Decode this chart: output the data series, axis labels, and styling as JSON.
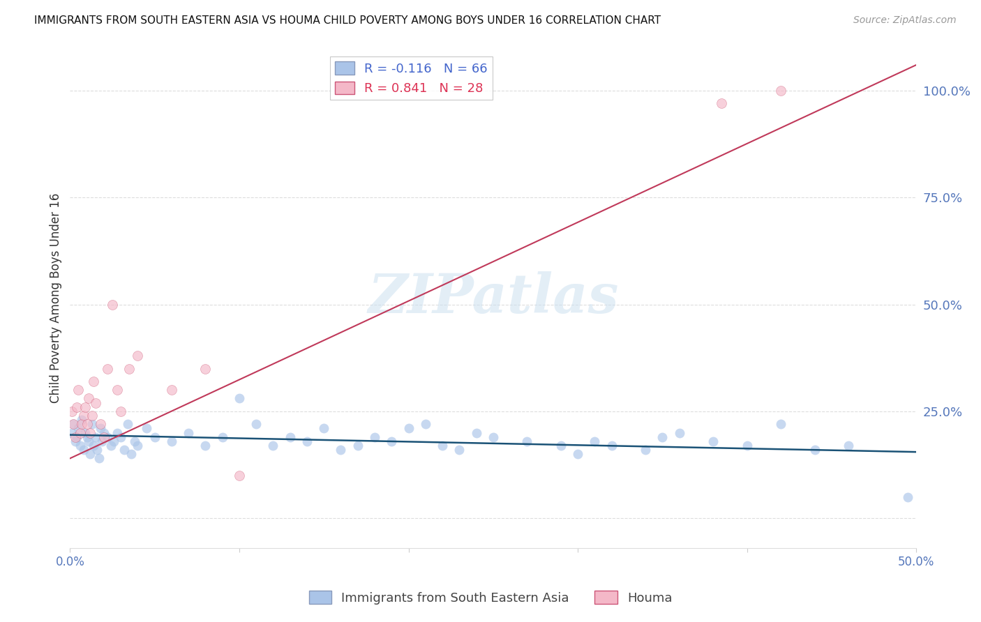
{
  "title": "IMMIGRANTS FROM SOUTH EASTERN ASIA VS HOUMA CHILD POVERTY AMONG BOYS UNDER 16 CORRELATION CHART",
  "source": "Source: ZipAtlas.com",
  "ylabel": "Child Poverty Among Boys Under 16",
  "xlim": [
    0.0,
    0.5
  ],
  "ylim": [
    -0.07,
    1.1
  ],
  "blue_color": "#aac4e8",
  "blue_line_color": "#1a5276",
  "pink_color": "#f4b8c8",
  "pink_line_color": "#c0395a",
  "blue_R": -0.116,
  "blue_N": 66,
  "pink_R": 0.841,
  "pink_N": 28,
  "legend_label_blue": "Immigrants from South Eastern Asia",
  "legend_label_pink": "Houma",
  "blue_x": [
    0.001,
    0.002,
    0.003,
    0.004,
    0.005,
    0.006,
    0.007,
    0.008,
    0.009,
    0.01,
    0.011,
    0.012,
    0.013,
    0.014,
    0.015,
    0.016,
    0.017,
    0.018,
    0.019,
    0.02,
    0.022,
    0.024,
    0.026,
    0.028,
    0.03,
    0.032,
    0.034,
    0.036,
    0.038,
    0.04,
    0.045,
    0.05,
    0.06,
    0.07,
    0.08,
    0.09,
    0.1,
    0.11,
    0.12,
    0.13,
    0.14,
    0.15,
    0.16,
    0.17,
    0.18,
    0.19,
    0.2,
    0.21,
    0.22,
    0.23,
    0.24,
    0.25,
    0.27,
    0.29,
    0.3,
    0.31,
    0.32,
    0.34,
    0.35,
    0.36,
    0.38,
    0.4,
    0.42,
    0.44,
    0.46,
    0.495
  ],
  "blue_y": [
    0.2,
    0.22,
    0.18,
    0.19,
    0.21,
    0.17,
    0.23,
    0.16,
    0.2,
    0.19,
    0.18,
    0.15,
    0.22,
    0.17,
    0.19,
    0.16,
    0.14,
    0.21,
    0.18,
    0.2,
    0.19,
    0.17,
    0.18,
    0.2,
    0.19,
    0.16,
    0.22,
    0.15,
    0.18,
    0.17,
    0.21,
    0.19,
    0.18,
    0.2,
    0.17,
    0.19,
    0.28,
    0.22,
    0.17,
    0.19,
    0.18,
    0.21,
    0.16,
    0.17,
    0.19,
    0.18,
    0.21,
    0.22,
    0.17,
    0.16,
    0.2,
    0.19,
    0.18,
    0.17,
    0.15,
    0.18,
    0.17,
    0.16,
    0.19,
    0.2,
    0.18,
    0.17,
    0.22,
    0.16,
    0.17,
    0.05
  ],
  "pink_x": [
    0.001,
    0.002,
    0.003,
    0.004,
    0.005,
    0.006,
    0.007,
    0.008,
    0.009,
    0.01,
    0.011,
    0.012,
    0.013,
    0.014,
    0.015,
    0.018,
    0.02,
    0.022,
    0.025,
    0.028,
    0.03,
    0.035,
    0.04,
    0.06,
    0.08,
    0.1,
    0.385,
    0.42
  ],
  "pink_y": [
    0.25,
    0.22,
    0.19,
    0.26,
    0.3,
    0.2,
    0.22,
    0.24,
    0.26,
    0.22,
    0.28,
    0.2,
    0.24,
    0.32,
    0.27,
    0.22,
    0.19,
    0.35,
    0.5,
    0.3,
    0.25,
    0.35,
    0.38,
    0.3,
    0.35,
    0.1,
    0.97,
    1.0
  ]
}
